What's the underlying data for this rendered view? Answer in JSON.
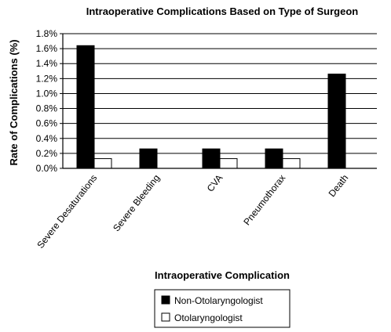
{
  "chart_data": {
    "type": "bar",
    "title": "Intraoperative Complications Based on Type of Surgeon",
    "xlabel": "Intraoperative Complication",
    "ylabel": "Rate of Complications (%)",
    "categories": [
      "Severe Desaturations",
      "Severe Bleeding",
      "CVA",
      "Pneumothorax",
      "Death"
    ],
    "series": [
      {
        "name": "Non-Otolaryngologist",
        "color": "#000000",
        "values": [
          1.64,
          0.26,
          0.26,
          0.26,
          1.26
        ]
      },
      {
        "name": "Otolaryngologist",
        "color": "#ffffff",
        "values": [
          0.13,
          0,
          0.13,
          0.13,
          0
        ]
      }
    ],
    "ylim": [
      0,
      1.8
    ],
    "yticks": [
      "0.0%",
      "0.2%",
      "0.4%",
      "0.6%",
      "0.8%",
      "1.0%",
      "1.2%",
      "1.4%",
      "1.6%",
      "1.8%"
    ],
    "grid": true,
    "legend_position": "bottom"
  }
}
